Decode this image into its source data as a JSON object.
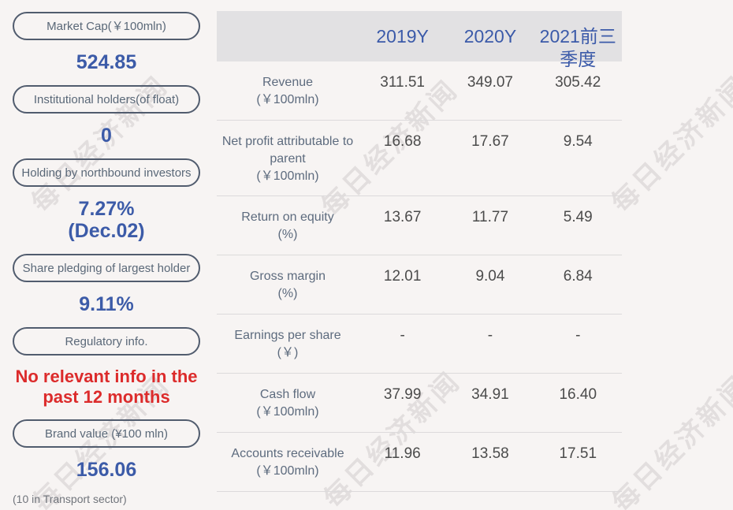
{
  "watermark": {
    "text": "每日经济新闻"
  },
  "sidebar": {
    "items": [
      {
        "id": "market-cap",
        "label": "Market Cap(￥100mln)",
        "value": "524.85",
        "emphasis": "blue"
      },
      {
        "id": "institutional-holders",
        "label": "Institutional holders(of float)",
        "value": "0",
        "emphasis": "blue"
      },
      {
        "id": "northbound-holding",
        "label": "Holding by northbound investors",
        "value": "7.27%",
        "sub": "(Dec.02)",
        "emphasis": "blue"
      },
      {
        "id": "share-pledging",
        "label": "Share pledging of largest holder",
        "value": "9.11%",
        "emphasis": "blue"
      },
      {
        "id": "regulatory-info",
        "label": "Regulatory info.",
        "value": "No relevant info in the past 12 months",
        "emphasis": "red"
      },
      {
        "id": "brand-value",
        "label": "Brand value (¥100 mln)",
        "value": "156.06",
        "emphasis": "blue",
        "caption": "(10 in Transport sector)"
      }
    ]
  },
  "table": {
    "columns": [
      "2019Y",
      "2020Y",
      "2021前三季度"
    ],
    "rows": [
      {
        "label": "Revenue",
        "unit": "(￥100mln)",
        "values": [
          "311.51",
          "349.07",
          "305.42"
        ]
      },
      {
        "label": "Net profit attributable to parent",
        "unit": "(￥100mln)",
        "values": [
          "16.68",
          "17.67",
          "9.54"
        ]
      },
      {
        "label": "Return on equity",
        "unit": "(%)",
        "values": [
          "13.67",
          "11.77",
          "5.49"
        ]
      },
      {
        "label": "Gross margin",
        "unit": "(%)",
        "values": [
          "12.01",
          "9.04",
          "6.84"
        ]
      },
      {
        "label": "Earnings per share",
        "unit": "(￥)",
        "values": [
          "-",
          "-",
          "-"
        ]
      },
      {
        "label": "Cash flow",
        "unit": "(￥100mln)",
        "values": [
          "37.99",
          "34.91",
          "16.40"
        ]
      },
      {
        "label": "Accounts receivable",
        "unit": "(￥100mln)",
        "values": [
          "11.96",
          "13.58",
          "17.51"
        ]
      }
    ]
  },
  "colors": {
    "page_bg": "#f7f4f3",
    "header_bg": "#e2e1e3",
    "accent_blue": "#3c5ba8",
    "header_blue": "#3b5aa9",
    "alert_red": "#dc2b2b",
    "pill_border": "#515c6e",
    "pill_text": "#5a6878",
    "row_label": "#5d6b7e",
    "cell_value": "#4b4b4b",
    "divider": "#dcdadb",
    "watermark": "#ddd8d9"
  }
}
